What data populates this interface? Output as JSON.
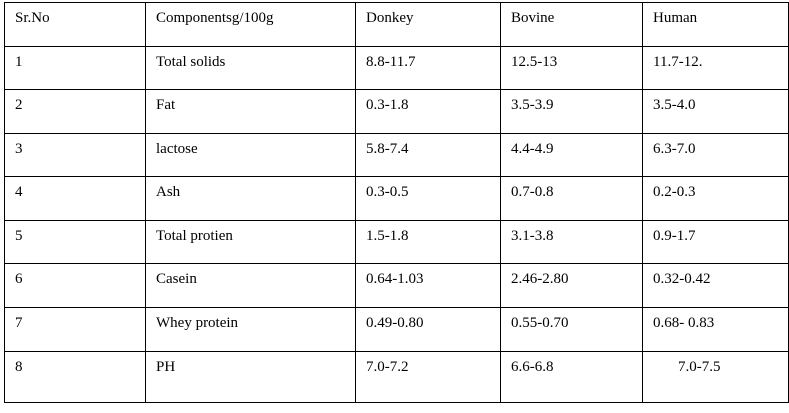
{
  "table": {
    "headers": [
      "Sr.No",
      "Componentsg/100g",
      "Donkey",
      "Bovine",
      "Human"
    ],
    "rows": [
      [
        "1",
        "Total solids",
        "8.8-11.7",
        "12.5-13",
        "11.7-12."
      ],
      [
        "2",
        "Fat",
        "0.3-1.8",
        "3.5-3.9",
        "3.5-4.0"
      ],
      [
        "3",
        "lactose",
        "5.8-7.4",
        "4.4-4.9",
        "6.3-7.0"
      ],
      [
        "4",
        "Ash",
        "0.3-0.5",
        "0.7-0.8",
        "0.2-0.3"
      ],
      [
        "5",
        "Total protien",
        "1.5-1.8",
        "3.1-3.8",
        "0.9-1.7"
      ],
      [
        "6",
        "Casein",
        "0.64-1.03",
        "2.46-2.80",
        "0.32-0.42"
      ],
      [
        "7",
        "Whey protein",
        "0.49-0.80",
        "0.55-0.70",
        "0.68- 0.83"
      ],
      [
        "8",
        "PH",
        "7.0-7.2",
        "6.6-6.8",
        "7.0-7.5"
      ]
    ]
  }
}
